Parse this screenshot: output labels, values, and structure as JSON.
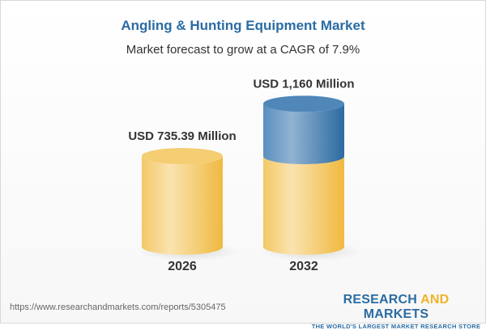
{
  "title": "Angling & Hunting Equipment Market",
  "subtitle": "Market forecast to grow at a CAGR of 7.9%",
  "chart_data": {
    "type": "bar",
    "style": "3d-cylinder",
    "categories": [
      "2026",
      "2032"
    ],
    "values": [
      735.39,
      1160
    ],
    "data_labels": [
      "USD 735.39 Million",
      "USD 1,160 Million"
    ],
    "unit": "USD Million",
    "colors": {
      "base": "#f3c55e",
      "growth": "#4a83b5"
    }
  },
  "footer": {
    "url": "https://www.researchandmarkets.com/reports/5305475",
    "logo_part1": "RESEARCH ",
    "logo_part2": "AND",
    "logo_part3": " MARKETS",
    "tagline": "THE WORLD'S LARGEST MARKET RESEARCH STORE"
  }
}
